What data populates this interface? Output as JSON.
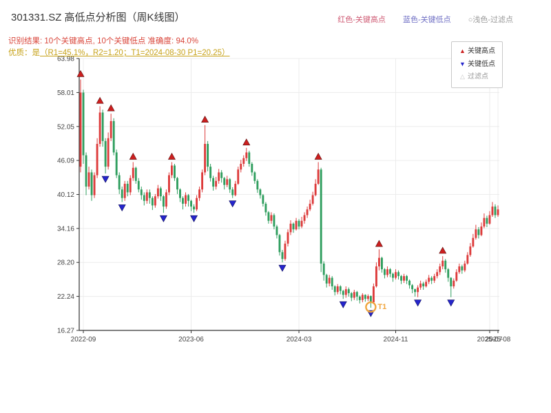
{
  "header": {
    "title": "301331.SZ 高低点分析图（周K线图）",
    "color_key": {
      "high": "红色-关键高点",
      "low": "蓝色-关键低点",
      "filter": "○浅色-过滤点"
    },
    "result_line": "识别结果: 10个关键高点, 10个关键低点  准确度: 94.0%",
    "quality_prefix": "优质：是",
    "quality_detail": "（R1=45.1%，R2=1.20；T1=2024-08-30 P1=20.25）"
  },
  "legend": {
    "items": [
      "关键高点",
      "关键低点",
      "过滤点"
    ]
  },
  "chart_data": {
    "type": "candlestick",
    "title": "301331.SZ 高低点分析图（周K线图）",
    "ylim": [
      16.27,
      63.98
    ],
    "yticks": [
      16.27,
      22.24,
      28.2,
      34.16,
      40.12,
      46.09,
      52.05,
      58.01,
      63.98
    ],
    "xticks": [
      {
        "label": "2022-09",
        "i": 1
      },
      {
        "label": "2023-06",
        "i": 40
      },
      {
        "label": "2024-03",
        "i": 79
      },
      {
        "label": "2024-11",
        "i": 114
      },
      {
        "label": "2025-07",
        "i": 148
      },
      {
        "label": "2025-08",
        "i": 151
      }
    ],
    "up_color": "#dd3b3b",
    "down_color": "#2f9e5e",
    "marker_high_color": "#cc1f1f",
    "marker_low_color": "#2525cc",
    "t1_color": "#f0a43c",
    "grid": true,
    "candles": [
      [
        45,
        60.3,
        44,
        58
      ],
      [
        58,
        58.5,
        45.5,
        47
      ],
      [
        47,
        47.5,
        40,
        41.5
      ],
      [
        41.5,
        45,
        41,
        44
      ],
      [
        44,
        44.5,
        39,
        40
      ],
      [
        40,
        44,
        39.5,
        43.5
      ],
      [
        43.5,
        50,
        43,
        49
      ],
      [
        49,
        55.6,
        48.5,
        54.5
      ],
      [
        54.5,
        55,
        48.5,
        49.5
      ],
      [
        49.5,
        50,
        43.8,
        45
      ],
      [
        45,
        51,
        44.5,
        50
      ],
      [
        50,
        54.3,
        49.5,
        53
      ],
      [
        53,
        53.5,
        47,
        47.5
      ],
      [
        47.5,
        48,
        43,
        43.5
      ],
      [
        43.5,
        44,
        40.2,
        41
      ],
      [
        41,
        41.5,
        38.8,
        39.5
      ],
      [
        39.5,
        42.5,
        39,
        42
      ],
      [
        42,
        42.5,
        39.8,
        40.5
      ],
      [
        40.5,
        43.5,
        40,
        43
      ],
      [
        43,
        45.8,
        42.5,
        44.8
      ],
      [
        44.8,
        45,
        42,
        42.5
      ],
      [
        42.5,
        43,
        40.5,
        41
      ],
      [
        41,
        41.5,
        39.2,
        40
      ],
      [
        40,
        40.5,
        38.2,
        39
      ],
      [
        39,
        41,
        38.5,
        40.5
      ],
      [
        40.5,
        41,
        38.5,
        39.5
      ],
      [
        39.5,
        39.8,
        37.4,
        38.2
      ],
      [
        38.2,
        40.2,
        37.8,
        39.8
      ],
      [
        39.8,
        41.8,
        39.4,
        41.2
      ],
      [
        41.2,
        41.5,
        39,
        39.8
      ],
      [
        39.8,
        40,
        36.9,
        38
      ],
      [
        38,
        41,
        37.6,
        40.5
      ],
      [
        40.5,
        44,
        40,
        43.5
      ],
      [
        43.5,
        45.8,
        43,
        45.2
      ],
      [
        45.2,
        45.5,
        42.5,
        43
      ],
      [
        43,
        43.2,
        40.2,
        41
      ],
      [
        41,
        41.2,
        38.8,
        39.5
      ],
      [
        39.5,
        39.8,
        37.5,
        38.5
      ],
      [
        38.5,
        40.5,
        38,
        40
      ],
      [
        40,
        40.2,
        38,
        39
      ],
      [
        39,
        39.2,
        37.2,
        38
      ],
      [
        38,
        38.4,
        36.9,
        37.5
      ],
      [
        37.5,
        40,
        37.2,
        39.5
      ],
      [
        39.5,
        41.5,
        39,
        41
      ],
      [
        41,
        44.5,
        40.5,
        44
      ],
      [
        44,
        52.3,
        43.5,
        49
      ],
      [
        49,
        49.5,
        44.2,
        45
      ],
      [
        45,
        45.5,
        42.4,
        43
      ],
      [
        43,
        43.4,
        40.8,
        41.5
      ],
      [
        41.5,
        43.2,
        41,
        42.5
      ],
      [
        42.5,
        44.6,
        42,
        44
      ],
      [
        44,
        44.4,
        42.2,
        43
      ],
      [
        43,
        43.2,
        41,
        41.8
      ],
      [
        41.8,
        43.4,
        41.4,
        42.8
      ],
      [
        42.8,
        43,
        40.4,
        41
      ],
      [
        41,
        41.4,
        39.5,
        40
      ],
      [
        40,
        42.5,
        39.8,
        42
      ],
      [
        42,
        45,
        41.8,
        44.5
      ],
      [
        44.5,
        46.2,
        44,
        45.5
      ],
      [
        45.5,
        47,
        45,
        46.5
      ],
      [
        46.5,
        48.3,
        46,
        47.5
      ],
      [
        47.5,
        47.8,
        45,
        45.5
      ],
      [
        45.5,
        45.8,
        43.4,
        44
      ],
      [
        44,
        44.2,
        42,
        42.5
      ],
      [
        42.5,
        42.8,
        40.4,
        41
      ],
      [
        41,
        41.2,
        39.4,
        40
      ],
      [
        40,
        40.2,
        38,
        38.5
      ],
      [
        38.5,
        38.8,
        36.4,
        37
      ],
      [
        37,
        37.2,
        35,
        35.5
      ],
      [
        35.5,
        37,
        35,
        36.5
      ],
      [
        36.5,
        36.8,
        34,
        34.5
      ],
      [
        34.5,
        34.8,
        32.4,
        33
      ],
      [
        33,
        33.2,
        29.4,
        30
      ],
      [
        30,
        30.4,
        28.2,
        28.8
      ],
      [
        28.8,
        32,
        28.5,
        31.5
      ],
      [
        31.5,
        34,
        31,
        33.5
      ],
      [
        33.5,
        35.6,
        33,
        35
      ],
      [
        35,
        35.2,
        33.4,
        34
      ],
      [
        34,
        36,
        33.8,
        35.5
      ],
      [
        35.5,
        35.8,
        34,
        34.5
      ],
      [
        34.5,
        36.2,
        34.2,
        35.5
      ],
      [
        35.5,
        37,
        35,
        36.5
      ],
      [
        36.5,
        38,
        36,
        37.5
      ],
      [
        37.5,
        39.2,
        37.2,
        38.5
      ],
      [
        38.5,
        40.6,
        38.2,
        40
      ],
      [
        40,
        42.8,
        39.8,
        42
      ],
      [
        42,
        45.8,
        41.8,
        44.5
      ],
      [
        44.5,
        44.8,
        26.5,
        28
      ],
      [
        28,
        28.4,
        25,
        26
      ],
      [
        26,
        26.2,
        23.8,
        24.5
      ],
      [
        24.5,
        26,
        24,
        25.5
      ],
      [
        25.5,
        25.8,
        23.4,
        24
      ],
      [
        24,
        24.2,
        22.4,
        23
      ],
      [
        23,
        24.4,
        22.6,
        24
      ],
      [
        24,
        24.2,
        22.6,
        23.2
      ],
      [
        23.2,
        23.4,
        21.8,
        22.5
      ],
      [
        22.5,
        24,
        22,
        23.5
      ],
      [
        23.5,
        23.8,
        22.2,
        22.8
      ],
      [
        22.8,
        23,
        21.4,
        22
      ],
      [
        22,
        23.4,
        21.6,
        23
      ],
      [
        23,
        23.2,
        21.5,
        22.2
      ],
      [
        22.2,
        22.4,
        21,
        21.6
      ],
      [
        21.6,
        22.8,
        21.2,
        22.5
      ],
      [
        22.5,
        22.6,
        21.3,
        21.8
      ],
      [
        21.8,
        22.6,
        21.4,
        22.3
      ],
      [
        22.3,
        22.4,
        20.25,
        21.2
      ],
      [
        21.2,
        24.5,
        21,
        24
      ],
      [
        24,
        28.2,
        23.8,
        27.5
      ],
      [
        27.5,
        30.5,
        26.8,
        29
      ],
      [
        29,
        29.2,
        26.4,
        27
      ],
      [
        27,
        27.2,
        25.4,
        26
      ],
      [
        26,
        27.5,
        25.6,
        27
      ],
      [
        27,
        27.2,
        25.6,
        26.2
      ],
      [
        26.2,
        26.4,
        24.8,
        25.5
      ],
      [
        25.5,
        27,
        25.2,
        26.5
      ],
      [
        26.5,
        26.8,
        25.2,
        25.8
      ],
      [
        25.8,
        26,
        24.4,
        25
      ],
      [
        25,
        26.2,
        24.6,
        25.8
      ],
      [
        25.8,
        26,
        24.4,
        25
      ],
      [
        25,
        25.2,
        23.6,
        24.2
      ],
      [
        24.2,
        24.4,
        22.8,
        23.5
      ],
      [
        23.5,
        23.6,
        22.2,
        23
      ],
      [
        23,
        24.2,
        22.1,
        23.8
      ],
      [
        23.8,
        25,
        23.4,
        24.5
      ],
      [
        24.5,
        24.8,
        23.4,
        24
      ],
      [
        24,
        25.2,
        23.8,
        24.8
      ],
      [
        24.8,
        26,
        24.4,
        25.5
      ],
      [
        25.5,
        25.8,
        24.4,
        25
      ],
      [
        25,
        26.2,
        24.6,
        25.8
      ],
      [
        25.8,
        27,
        25.4,
        26.5
      ],
      [
        26.5,
        28,
        26,
        27.5
      ],
      [
        27.5,
        29.3,
        27,
        28.5
      ],
      [
        28.5,
        28.8,
        26.4,
        27
      ],
      [
        27,
        27.2,
        24.8,
        25.5
      ],
      [
        25.5,
        25.6,
        22.1,
        24
      ],
      [
        24,
        25.4,
        23.6,
        25
      ],
      [
        25,
        27,
        24.8,
        26.5
      ],
      [
        26.5,
        28,
        26.2,
        27.5
      ],
      [
        27.5,
        27.8,
        26.2,
        26.8
      ],
      [
        26.8,
        28.5,
        26.5,
        28
      ],
      [
        28,
        30,
        27.8,
        29.5
      ],
      [
        29.5,
        31.6,
        29.2,
        31
      ],
      [
        31,
        33.2,
        30.8,
        32.5
      ],
      [
        32.5,
        34.8,
        32.2,
        34
      ],
      [
        34,
        34.4,
        32.4,
        33
      ],
      [
        33,
        35.2,
        32.8,
        34.5
      ],
      [
        34.5,
        36.8,
        34.2,
        36
      ],
      [
        36,
        36.4,
        34.4,
        35
      ],
      [
        35,
        37.2,
        34.8,
        36.5
      ],
      [
        36.5,
        38.8,
        36.2,
        38
      ],
      [
        38,
        38.4,
        36,
        36.5
      ],
      [
        36.5,
        38.2,
        36.2,
        37.5
      ]
    ],
    "key_highs": [
      {
        "i": 0,
        "v": 60.3
      },
      {
        "i": 7,
        "v": 55.6
      },
      {
        "i": 11,
        "v": 54.3
      },
      {
        "i": 19,
        "v": 45.8
      },
      {
        "i": 33,
        "v": 45.8
      },
      {
        "i": 45,
        "v": 52.3
      },
      {
        "i": 60,
        "v": 48.3
      },
      {
        "i": 86,
        "v": 45.8
      },
      {
        "i": 108,
        "v": 30.5
      },
      {
        "i": 131,
        "v": 29.3
      }
    ],
    "key_lows": [
      {
        "i": 9,
        "v": 43.8
      },
      {
        "i": 15,
        "v": 38.8
      },
      {
        "i": 30,
        "v": 36.9
      },
      {
        "i": 41,
        "v": 36.9
      },
      {
        "i": 55,
        "v": 39.5
      },
      {
        "i": 73,
        "v": 28.2
      },
      {
        "i": 95,
        "v": 21.8
      },
      {
        "i": 105,
        "v": 20.25
      },
      {
        "i": 122,
        "v": 22.1
      },
      {
        "i": 134,
        "v": 22.1
      }
    ],
    "t1_marker": {
      "i": 105,
      "v": 20.25,
      "label": "T1"
    }
  }
}
